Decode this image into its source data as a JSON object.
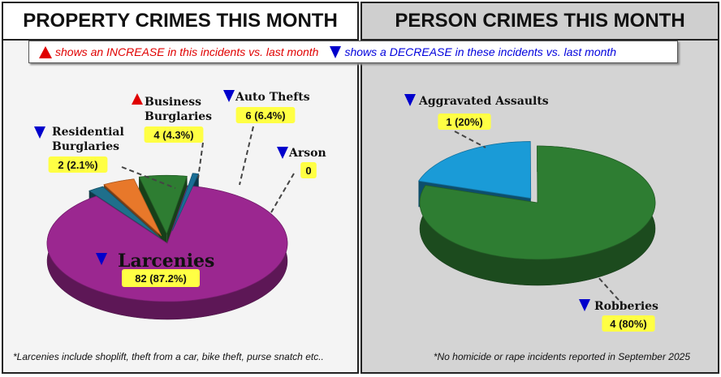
{
  "left": {
    "header": "PROPERTY CRIMES THIS MONTH",
    "footnote": "*Larcenies include shoplift, theft from a car, bike theft, purse snatch etc.."
  },
  "right": {
    "header": "PERSON CRIMES THIS MONTH",
    "footnote": "*No homicide or rape incidents reported in September 2025"
  },
  "legend": {
    "increase_text": "shows an INCREASE in this incidents vs. last month",
    "decrease_text": "shows a DECREASE in these incidents vs. last month",
    "increase_color": "#e00000",
    "decrease_color": "#0000cc"
  },
  "chart_data": [
    {
      "type": "pie",
      "title": "PROPERTY CRIMES THIS MONTH",
      "slices": [
        {
          "label": "Larcenies",
          "value": 82,
          "percent": "87.2%",
          "value_text": "82 (87.2%)",
          "trend": "decrease",
          "color": "#9b2790"
        },
        {
          "label": "Residential Burglaries",
          "value": 2,
          "percent": "2.1%",
          "value_text": "2 (2.1%)",
          "trend": "decrease",
          "color": "#1f6f8b"
        },
        {
          "label": "Business Burglaries",
          "value": 4,
          "percent": "4.3%",
          "value_text": "4 (4.3%)",
          "trend": "increase",
          "color": "#e8782a"
        },
        {
          "label": "Auto Thefts",
          "value": 6,
          "percent": "6.4%",
          "value_text": "6 (6.4%)",
          "trend": "decrease",
          "color": "#2e7d32"
        },
        {
          "label": "Arson",
          "value": 0,
          "percent": "",
          "value_text": "0",
          "trend": "decrease",
          "color": "#1a6e96"
        }
      ]
    },
    {
      "type": "pie",
      "title": "PERSON CRIMES THIS MONTH",
      "slices": [
        {
          "label": "Robberies",
          "value": 4,
          "percent": "80%",
          "value_text": "4 (80%)",
          "trend": "decrease",
          "color": "#2e7d32"
        },
        {
          "label": "Aggravated Assaults",
          "value": 1,
          "percent": "20%",
          "value_text": "1 (20%)",
          "trend": "decrease",
          "color": "#1a9bd7"
        }
      ]
    }
  ]
}
